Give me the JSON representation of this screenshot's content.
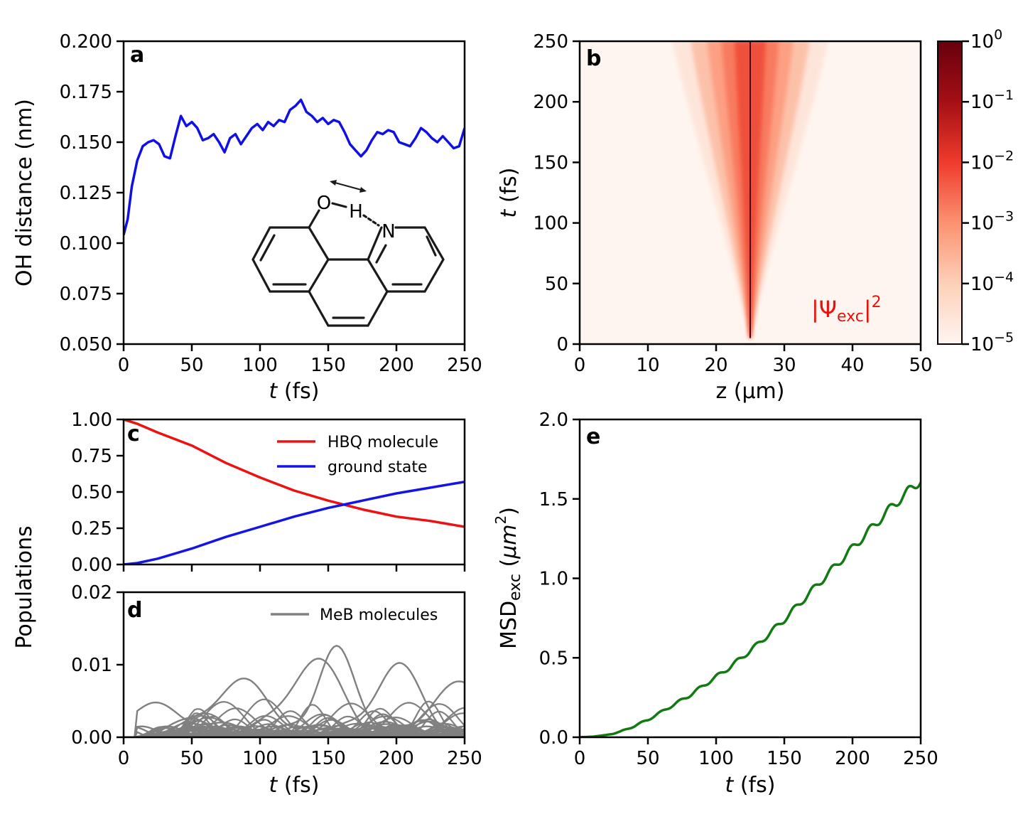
{
  "chart_data": [
    {
      "panel": "a",
      "type": "line",
      "xlabel_var": "t",
      "xlabel_unit": " (fs)",
      "ylabel": "OH distance (nm)",
      "xlim": [
        0,
        250
      ],
      "ylim": [
        0.05,
        0.2
      ],
      "xticks": [
        "0",
        "50",
        "100",
        "150",
        "200",
        "250"
      ],
      "yticks": [
        "0.050",
        "0.075",
        "0.100",
        "0.125",
        "0.150",
        "0.175",
        "0.200"
      ],
      "color": "#1010e6",
      "series": [
        {
          "name": "OH distance",
          "x": [
            0,
            3,
            6,
            10,
            14,
            18,
            22,
            26,
            30,
            34,
            38,
            42,
            46,
            50,
            54,
            58,
            62,
            66,
            70,
            74,
            78,
            82,
            86,
            90,
            94,
            98,
            102,
            106,
            110,
            114,
            118,
            122,
            126,
            130,
            134,
            138,
            142,
            146,
            150,
            154,
            158,
            162,
            166,
            170,
            174,
            178,
            182,
            186,
            190,
            194,
            198,
            202,
            206,
            210,
            214,
            218,
            222,
            226,
            230,
            234,
            238,
            242,
            246,
            250
          ],
          "y": [
            0.104,
            0.112,
            0.128,
            0.141,
            0.148,
            0.15,
            0.151,
            0.149,
            0.143,
            0.142,
            0.153,
            0.163,
            0.158,
            0.16,
            0.157,
            0.151,
            0.152,
            0.154,
            0.15,
            0.145,
            0.152,
            0.154,
            0.149,
            0.153,
            0.157,
            0.159,
            0.156,
            0.16,
            0.158,
            0.161,
            0.16,
            0.166,
            0.168,
            0.171,
            0.165,
            0.163,
            0.16,
            0.162,
            0.159,
            0.161,
            0.16,
            0.155,
            0.149,
            0.146,
            0.143,
            0.146,
            0.151,
            0.155,
            0.154,
            0.156,
            0.155,
            0.15,
            0.149,
            0.148,
            0.152,
            0.157,
            0.155,
            0.152,
            0.15,
            0.153,
            0.15,
            0.147,
            0.148,
            0.157
          ]
        }
      ],
      "annotation": {
        "atoms": [
          "O",
          "H",
          "N"
        ]
      }
    },
    {
      "panel": "b",
      "type": "heatmap",
      "xlabel": "z (μm)",
      "ylabel_var": "t",
      "ylabel_unit": " (fs)",
      "xlim": [
        0,
        50
      ],
      "ylim": [
        0,
        250
      ],
      "xticks": [
        "0",
        "10",
        "20",
        "30",
        "40",
        "50"
      ],
      "yticks": [
        "0",
        "50",
        "100",
        "150",
        "200",
        "250"
      ],
      "center_z": 25,
      "spread_at_t250_um": 6,
      "colorbar": {
        "scale": "log",
        "min_exp": -5,
        "max_exp": 0,
        "base": "10",
        "exponents": [
          "0",
          "−1",
          "−2",
          "−3",
          "−4",
          "−5"
        ],
        "colors": [
          "#fff5f0",
          "#fdd0b9",
          "#fc9272",
          "#ef3b2c",
          "#a50f15",
          "#67000d"
        ]
      },
      "label_text": "|Ψ",
      "label_sub": "exc",
      "label_close": "|",
      "label_sup": "2",
      "label_color": "#e8120c"
    },
    {
      "panel": "c",
      "type": "line",
      "ylim": [
        0,
        1
      ],
      "xlim": [
        0,
        250
      ],
      "yticks": [
        "0.00",
        "0.25",
        "0.50",
        "0.75",
        "1.00"
      ],
      "series": [
        {
          "name": "HBQ molecule",
          "color": "#ee1111",
          "x": [
            0,
            10,
            25,
            50,
            75,
            100,
            125,
            150,
            175,
            200,
            225,
            250
          ],
          "y": [
            1.0,
            0.97,
            0.91,
            0.82,
            0.7,
            0.6,
            0.51,
            0.44,
            0.38,
            0.33,
            0.3,
            0.26
          ]
        },
        {
          "name": "ground state",
          "color": "#1414e6",
          "x": [
            0,
            10,
            25,
            50,
            75,
            100,
            125,
            150,
            175,
            200,
            225,
            250
          ],
          "y": [
            0.0,
            0.01,
            0.04,
            0.11,
            0.19,
            0.26,
            0.33,
            0.39,
            0.44,
            0.49,
            0.53,
            0.57
          ]
        }
      ]
    },
    {
      "panel": "d",
      "type": "line",
      "ylim": [
        0,
        0.02
      ],
      "xlim": [
        0,
        250
      ],
      "xlabel_var": "t",
      "xlabel_unit": " (fs)",
      "yticks": [
        "0.00",
        "0.01",
        "0.02"
      ],
      "xticks": [
        "0",
        "50",
        "100",
        "150",
        "200",
        "250"
      ],
      "series_name": "MeB molecules",
      "color": "#808080",
      "num_lines": 40,
      "peak_points": [
        {
          "x": 155,
          "y": 0.012
        },
        {
          "x": 200,
          "y": 0.0095
        },
        {
          "x": 140,
          "y": 0.01
        },
        {
          "x": 85,
          "y": 0.0068
        },
        {
          "x": 250,
          "y": 0.0064
        },
        {
          "x": 23,
          "y": 0.0033
        }
      ]
    },
    {
      "panel": "e",
      "type": "line",
      "xlim": [
        0,
        250
      ],
      "ylim": [
        0,
        2
      ],
      "xlabel_var": "t",
      "xlabel_unit": " (fs)",
      "ylabel_main": "MSD",
      "ylabel_sub": "exc",
      "ylabel_unit_a": " (",
      "ylabel_unit_mu": "μm",
      "ylabel_unit_sup": "2",
      "ylabel_unit_b": ")",
      "xticks": [
        "0",
        "50",
        "100",
        "150",
        "200",
        "250"
      ],
      "yticks": [
        "0.0",
        "0.5",
        "1.0",
        "1.5",
        "2.0"
      ],
      "color": "#127a12",
      "series": [
        {
          "name": "MSD",
          "x": [
            0,
            10,
            20,
            30,
            40,
            50,
            60,
            70,
            80,
            90,
            100,
            110,
            120,
            130,
            140,
            150,
            160,
            170,
            180,
            190,
            200,
            210,
            220,
            230,
            240,
            250
          ],
          "y": [
            0.0,
            0.004,
            0.015,
            0.035,
            0.07,
            0.11,
            0.16,
            0.21,
            0.26,
            0.32,
            0.38,
            0.44,
            0.51,
            0.58,
            0.66,
            0.74,
            0.83,
            0.92,
            1.01,
            1.1,
            1.19,
            1.28,
            1.37,
            1.46,
            1.54,
            1.62
          ]
        }
      ]
    }
  ],
  "shared": {
    "panel_labels": [
      "a",
      "b",
      "c",
      "d",
      "e"
    ],
    "populations_ylabel": "Populations"
  }
}
